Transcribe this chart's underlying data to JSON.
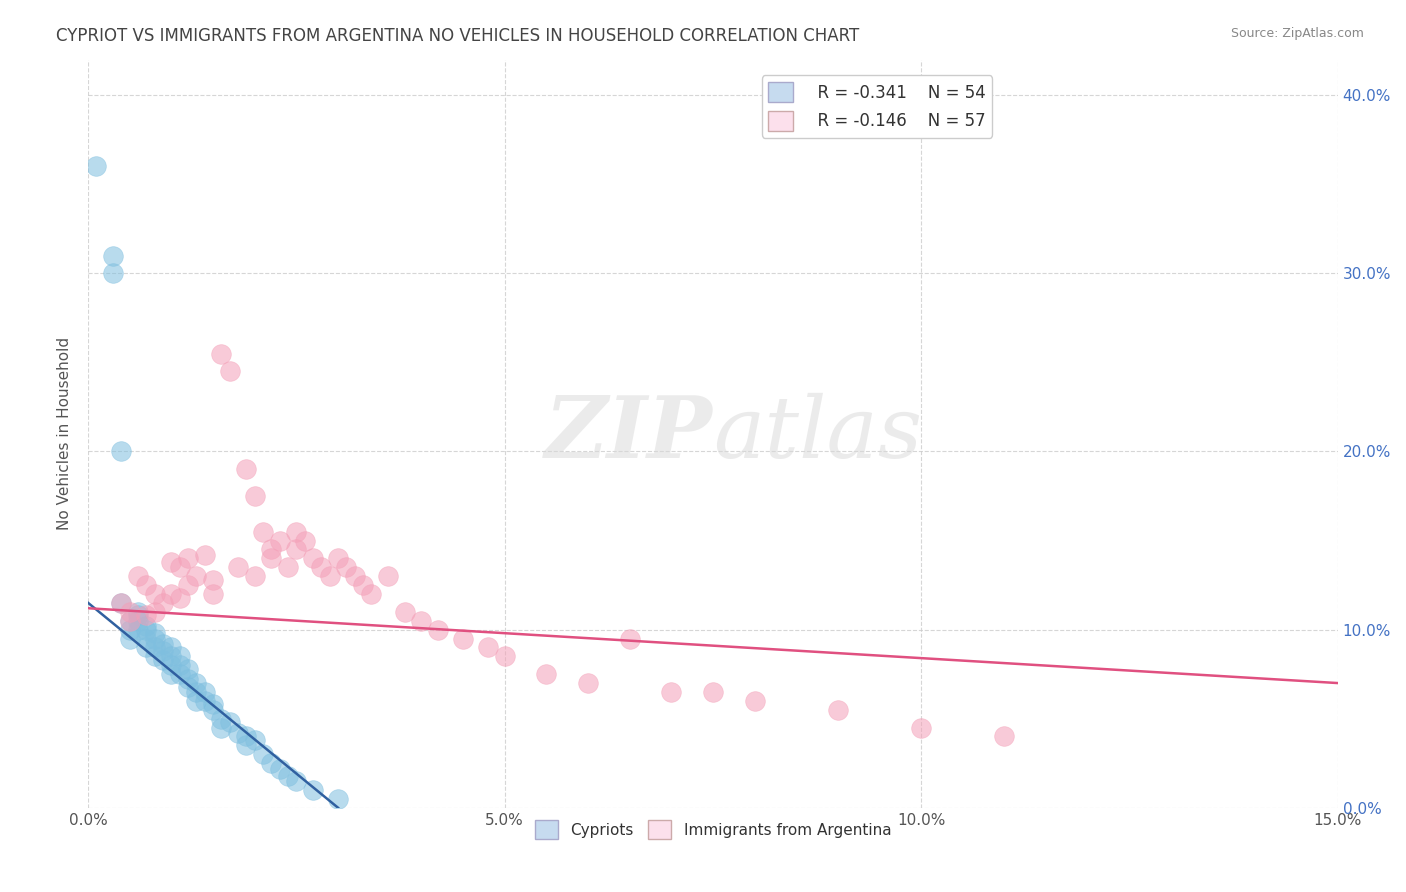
{
  "title": "CYPRIOT VS IMMIGRANTS FROM ARGENTINA NO VEHICLES IN HOUSEHOLD CORRELATION CHART",
  "source": "Source: ZipAtlas.com",
  "ylabel": "No Vehicles in Household",
  "xlim": [
    0.0,
    0.15
  ],
  "ylim": [
    0.0,
    0.42
  ],
  "xtick_vals": [
    0.0,
    0.05,
    0.1,
    0.15
  ],
  "xtick_labels": [
    "0.0%",
    "5.0%",
    "10.0%",
    "15.0%"
  ],
  "ytick_positions": [
    0.0,
    0.1,
    0.2,
    0.3,
    0.4
  ],
  "ytick_labels": [
    "0.0%",
    "10.0%",
    "20.0%",
    "30.0%",
    "40.0%"
  ],
  "legend_r_blue": "R = -0.341",
  "legend_n_blue": "N = 54",
  "legend_r_pink": "R = -0.146",
  "legend_n_pink": "N = 57",
  "label_blue": "Cypriots",
  "label_pink": "Immigrants from Argentina",
  "blue_color": "#7fbfdf",
  "pink_color": "#f4a0b8",
  "blue_fill": "#c6dbef",
  "pink_fill": "#fce0ec",
  "blue_line_color": "#3060a0",
  "pink_line_color": "#e05080",
  "watermark": "ZIPatlas",
  "blue_scatter_x": [
    0.001,
    0.003,
    0.003,
    0.004,
    0.004,
    0.005,
    0.005,
    0.005,
    0.006,
    0.006,
    0.006,
    0.006,
    0.007,
    0.007,
    0.007,
    0.007,
    0.008,
    0.008,
    0.008,
    0.008,
    0.009,
    0.009,
    0.009,
    0.01,
    0.01,
    0.01,
    0.01,
    0.011,
    0.011,
    0.011,
    0.012,
    0.012,
    0.012,
    0.013,
    0.013,
    0.013,
    0.014,
    0.014,
    0.015,
    0.015,
    0.016,
    0.016,
    0.017,
    0.018,
    0.019,
    0.019,
    0.02,
    0.021,
    0.022,
    0.023,
    0.024,
    0.025,
    0.027,
    0.03
  ],
  "blue_scatter_y": [
    0.36,
    0.31,
    0.3,
    0.2,
    0.115,
    0.105,
    0.1,
    0.095,
    0.11,
    0.108,
    0.105,
    0.1,
    0.102,
    0.1,
    0.095,
    0.09,
    0.098,
    0.095,
    0.09,
    0.085,
    0.092,
    0.088,
    0.083,
    0.09,
    0.085,
    0.08,
    0.075,
    0.085,
    0.08,
    0.075,
    0.078,
    0.072,
    0.068,
    0.07,
    0.065,
    0.06,
    0.065,
    0.06,
    0.058,
    0.055,
    0.05,
    0.045,
    0.048,
    0.042,
    0.04,
    0.035,
    0.038,
    0.03,
    0.025,
    0.022,
    0.018,
    0.015,
    0.01,
    0.005
  ],
  "pink_scatter_x": [
    0.004,
    0.005,
    0.005,
    0.006,
    0.007,
    0.007,
    0.008,
    0.008,
    0.009,
    0.01,
    0.01,
    0.011,
    0.011,
    0.012,
    0.012,
    0.013,
    0.014,
    0.015,
    0.015,
    0.016,
    0.017,
    0.018,
    0.019,
    0.02,
    0.02,
    0.021,
    0.022,
    0.022,
    0.023,
    0.024,
    0.025,
    0.025,
    0.026,
    0.027,
    0.028,
    0.029,
    0.03,
    0.031,
    0.032,
    0.033,
    0.034,
    0.036,
    0.038,
    0.04,
    0.042,
    0.045,
    0.048,
    0.05,
    0.055,
    0.06,
    0.065,
    0.07,
    0.075,
    0.08,
    0.09,
    0.1,
    0.11
  ],
  "pink_scatter_y": [
    0.115,
    0.11,
    0.105,
    0.13,
    0.125,
    0.108,
    0.12,
    0.11,
    0.115,
    0.138,
    0.12,
    0.135,
    0.118,
    0.14,
    0.125,
    0.13,
    0.142,
    0.128,
    0.12,
    0.255,
    0.245,
    0.135,
    0.19,
    0.175,
    0.13,
    0.155,
    0.145,
    0.14,
    0.15,
    0.135,
    0.155,
    0.145,
    0.15,
    0.14,
    0.135,
    0.13,
    0.14,
    0.135,
    0.13,
    0.125,
    0.12,
    0.13,
    0.11,
    0.105,
    0.1,
    0.095,
    0.09,
    0.085,
    0.075,
    0.07,
    0.095,
    0.065,
    0.065,
    0.06,
    0.055,
    0.045,
    0.04
  ],
  "blue_trend_x": [
    0.0,
    0.03
  ],
  "blue_trend_y": [
    0.115,
    0.0
  ],
  "pink_trend_x": [
    0.0,
    0.15
  ],
  "pink_trend_y": [
    0.112,
    0.07
  ]
}
